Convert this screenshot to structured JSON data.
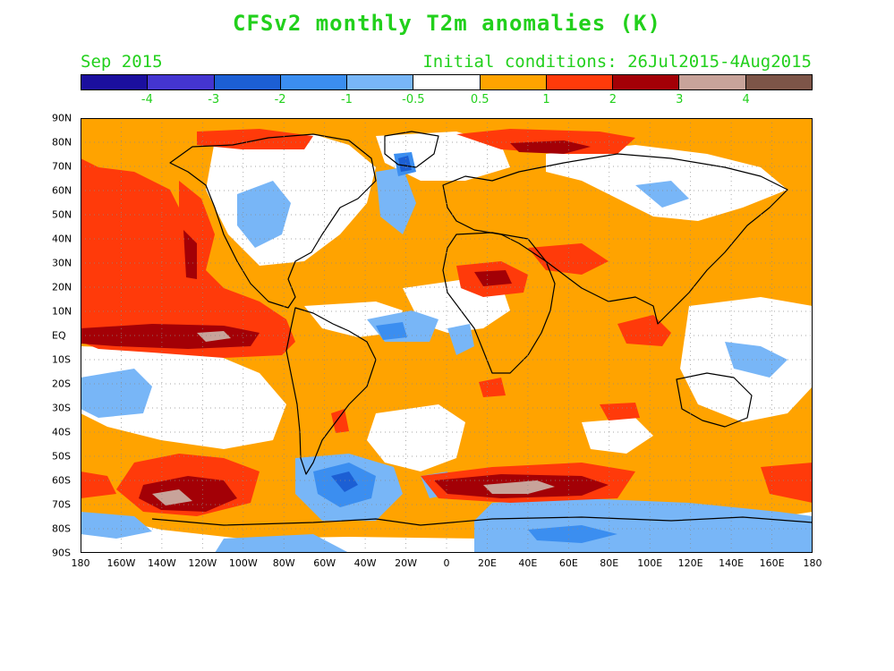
{
  "title": "CFSv2 monthly T2m anomalies (K)",
  "valid_month": "Sep 2015",
  "initial_conditions": "Initial conditions: 26Jul2015-4Aug2015",
  "colorbar": {
    "colors": [
      "#1b0f9e",
      "#4435d0",
      "#1c5fd4",
      "#3b8ef0",
      "#78b6f7",
      "#ffffff",
      "#ffa300",
      "#ff3a0a",
      "#a30006",
      "#c8a39a",
      "#7d5548"
    ],
    "labels": [
      "-4",
      "-3",
      "-2",
      "-1",
      "-0.5",
      "0.5",
      "1",
      "2",
      "3",
      "4"
    ]
  },
  "lat_labels": [
    "90N",
    "80N",
    "70N",
    "60N",
    "50N",
    "40N",
    "30N",
    "20N",
    "10N",
    "EQ",
    "10S",
    "20S",
    "30S",
    "40S",
    "50S",
    "60S",
    "70S",
    "80S",
    "90S"
  ],
  "lon_labels": [
    "180",
    "160W",
    "140W",
    "120W",
    "100W",
    "80W",
    "60W",
    "40W",
    "20W",
    "0",
    "20E",
    "40E",
    "60E",
    "80E",
    "100E",
    "120E",
    "140E",
    "160E",
    "180"
  ]
}
